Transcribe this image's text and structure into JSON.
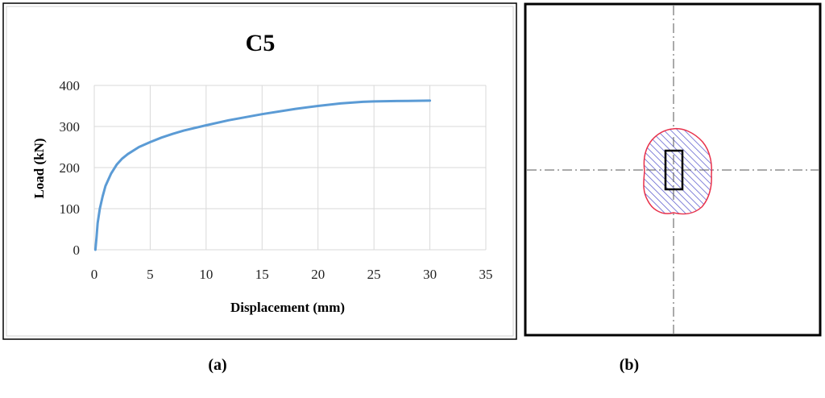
{
  "panels": {
    "a_label": "(a)",
    "b_label": "(b)"
  },
  "chart_data": {
    "type": "line",
    "title": "C5",
    "xlabel": "Displacement (mm)",
    "ylabel": "Load (kN)",
    "xlim": [
      0,
      35
    ],
    "ylim": [
      0,
      400
    ],
    "xticks": [
      0,
      5,
      10,
      15,
      20,
      25,
      30,
      35
    ],
    "yticks": [
      0,
      100,
      200,
      300,
      400
    ],
    "grid": true,
    "line_color": "#5b9bd5",
    "series": [
      {
        "x": [
          0.1,
          0.2,
          0.3,
          0.5,
          0.75,
          1,
          1.5,
          2,
          2.5,
          3,
          4,
          5,
          6,
          7,
          8,
          10,
          12,
          15,
          18,
          20,
          22,
          24,
          25,
          27,
          30
        ],
        "values": [
          0,
          30,
          65,
          100,
          130,
          155,
          185,
          207,
          222,
          233,
          250,
          262,
          273,
          282,
          290,
          303,
          315,
          330,
          343,
          350,
          356,
          360,
          361,
          362,
          363
        ]
      }
    ]
  },
  "diagram_b": {
    "frame_color": "#000000",
    "axis_color": "#555555",
    "region_outline_color": "#e8304a",
    "hatch_color": "#4a4ac8",
    "column_color": "#000000"
  }
}
